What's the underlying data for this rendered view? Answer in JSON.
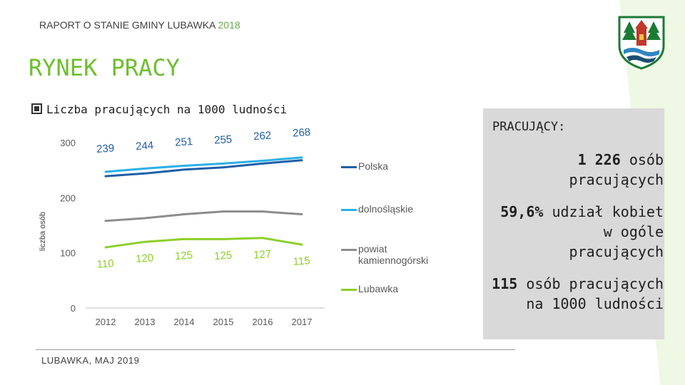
{
  "header": {
    "prefix": "RAPORT O STANIE GMINY LUBAWKA",
    "year": "2018"
  },
  "title": "RYNEK PRACY",
  "subtitle": "Liczba pracujących na 1000 ludności",
  "footer": "LUBAWKA, MAJ 2019",
  "colors": {
    "accent": "#6dbf2e",
    "polska": "#1f5fa8",
    "dolnoslaskie": "#2bb0e6",
    "powiat": "#8c8c8c",
    "lubawka": "#8ccf2a",
    "panel": "#d9d9d9"
  },
  "panel": {
    "title": "PRACUJĄCY:",
    "stats": [
      {
        "bold": "1 226",
        "rest": " osób",
        "line2": "pracujących"
      },
      {
        "bold": "59,6%",
        "rest": " udział kobiet",
        "line2": "w ogóle",
        "line3": "pracujących"
      },
      {
        "bold": "115",
        "rest": " osób pracujących",
        "line2": "na 1000 ludności"
      }
    ]
  },
  "chart_data": {
    "type": "line",
    "ylabel": "liczba osób",
    "xlabel": "",
    "ylim": [
      0,
      300
    ],
    "yticks": [
      "0",
      "100",
      "200",
      "300"
    ],
    "categories": [
      "2012",
      "2013",
      "2014",
      "2015",
      "2016",
      "2017"
    ],
    "legend_position": "right",
    "series": [
      {
        "name": "Polska",
        "color": "#1f5fa8",
        "values": [
          239,
          244,
          251,
          255,
          262,
          268
        ],
        "labels": true
      },
      {
        "name": "dolnośląskie",
        "color": "#2bb0e6",
        "values": [
          247,
          253,
          258,
          262,
          267,
          273
        ],
        "labels": false
      },
      {
        "name": "powiat kamiennogórski",
        "color": "#8c8c8c",
        "values": [
          158,
          163,
          170,
          175,
          175,
          170
        ],
        "labels": false
      },
      {
        "name": "Lubawka",
        "color": "#8ccf2a",
        "values": [
          110,
          120,
          125,
          125,
          127,
          115
        ],
        "labels": true
      }
    ]
  }
}
